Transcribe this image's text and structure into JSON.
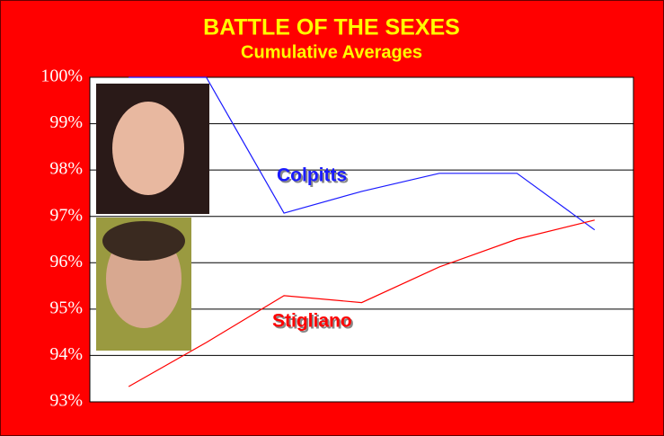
{
  "chart_data": {
    "type": "line",
    "title": "BATTLE OF THE SEXES",
    "subtitle": "Cumulative Averages",
    "categories": [
      null,
      null,
      null,
      null,
      null,
      null,
      null
    ],
    "series": [
      {
        "name": "Colpitts",
        "color": "#1a1aff",
        "values": [
          100,
          100,
          97.07,
          97.54,
          97.93,
          97.93,
          96.71
        ]
      },
      {
        "name": "Stigliano",
        "color": "#ff0000",
        "values": [
          93.33,
          94.28,
          95.29,
          95.14,
          95.91,
          96.51,
          96.92
        ]
      }
    ],
    "ylim": [
      93,
      100
    ],
    "yticks": [
      {
        "value": 93,
        "label": "93%"
      },
      {
        "value": 94,
        "label": "94%"
      },
      {
        "value": 95,
        "label": "95%"
      },
      {
        "value": 96,
        "label": "96%"
      },
      {
        "value": 97,
        "label": "97%"
      },
      {
        "value": 98,
        "label": "98%"
      },
      {
        "value": 99,
        "label": "99%"
      },
      {
        "value": 100,
        "label": "100%"
      }
    ],
    "grid": true
  }
}
